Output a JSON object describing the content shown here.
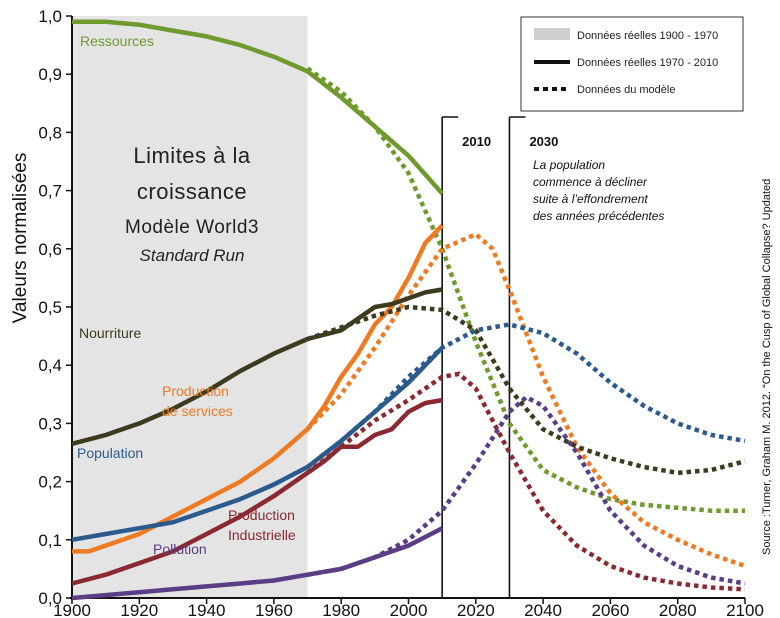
{
  "chart_data": {
    "type": "line",
    "title_lines": [
      "Limites à la",
      "croissance",
      "Modèle World3"
    ],
    "subtitle": "Standard Run",
    "ylabel": "Valeurs normalisées",
    "xlabel": "",
    "xlim": [
      1900,
      2100
    ],
    "ylim": [
      0,
      1
    ],
    "xticks": [
      "1900",
      "1920",
      "1940",
      "1960",
      "1980",
      "2000",
      "2020",
      "2040",
      "2060",
      "2080",
      "2100"
    ],
    "yticks": [
      "0,0",
      "0,1",
      "0,2",
      "0,3",
      "0,4",
      "0,5",
      "0,6",
      "0,7",
      "0,8",
      "0,9",
      "1,0"
    ],
    "shaded_period": [
      1900,
      1970
    ],
    "legend": {
      "placement": "top-right",
      "entries": [
        "Données réelles 1900 - 1970",
        "Données réelles 1970 - 2010",
        "Données du modèle"
      ]
    },
    "vlines": [
      {
        "x": 2010,
        "label": "2010"
      },
      {
        "x": 2030,
        "label": "2030"
      }
    ],
    "annotation_lines": [
      "La population",
      "commence à décliner",
      "suite à l’effondrement",
      "des années précédentes"
    ],
    "source": "Source :Turner, Graham M. 2012. “On the Cusp of Global Collapse? Updated",
    "series": [
      {
        "name": "Ressources",
        "color": "#6e9a2e",
        "label_lines": [
          "Ressources"
        ],
        "actual": [
          [
            1900,
            0.99
          ],
          [
            1910,
            0.99
          ],
          [
            1920,
            0.985
          ],
          [
            1930,
            0.975
          ],
          [
            1940,
            0.965
          ],
          [
            1950,
            0.95
          ],
          [
            1960,
            0.93
          ],
          [
            1970,
            0.905
          ],
          [
            1980,
            0.86
          ],
          [
            1990,
            0.81
          ],
          [
            2000,
            0.76
          ],
          [
            2010,
            0.695
          ]
        ],
        "model": [
          [
            1970,
            0.91
          ],
          [
            1980,
            0.87
          ],
          [
            1990,
            0.81
          ],
          [
            2000,
            0.73
          ],
          [
            2010,
            0.6
          ],
          [
            2020,
            0.44
          ],
          [
            2030,
            0.3
          ],
          [
            2040,
            0.22
          ],
          [
            2050,
            0.19
          ],
          [
            2060,
            0.17
          ],
          [
            2070,
            0.16
          ],
          [
            2080,
            0.155
          ],
          [
            2090,
            0.15
          ],
          [
            2100,
            0.15
          ]
        ]
      },
      {
        "name": "Production de services",
        "color": "#ee7a22",
        "label_lines": [
          "Production",
          "de services"
        ],
        "actual": [
          [
            1900,
            0.08
          ],
          [
            1905,
            0.08
          ],
          [
            1910,
            0.09
          ],
          [
            1920,
            0.11
          ],
          [
            1930,
            0.14
          ],
          [
            1940,
            0.17
          ],
          [
            1950,
            0.2
          ],
          [
            1960,
            0.24
          ],
          [
            1970,
            0.29
          ],
          [
            1975,
            0.33
          ],
          [
            1980,
            0.38
          ],
          [
            1985,
            0.42
          ],
          [
            1990,
            0.47
          ],
          [
            1995,
            0.5
          ],
          [
            2000,
            0.55
          ],
          [
            2005,
            0.61
          ],
          [
            2010,
            0.64
          ]
        ],
        "model": [
          [
            1970,
            0.29
          ],
          [
            1980,
            0.35
          ],
          [
            1990,
            0.43
          ],
          [
            2000,
            0.52
          ],
          [
            2010,
            0.6
          ],
          [
            2020,
            0.625
          ],
          [
            2025,
            0.6
          ],
          [
            2030,
            0.53
          ],
          [
            2040,
            0.38
          ],
          [
            2050,
            0.26
          ],
          [
            2060,
            0.18
          ],
          [
            2070,
            0.13
          ],
          [
            2080,
            0.1
          ],
          [
            2090,
            0.075
          ],
          [
            2100,
            0.055
          ]
        ]
      },
      {
        "name": "Nourriture",
        "color": "#3d3a1e",
        "label_lines": [
          "Nourriture"
        ],
        "actual": [
          [
            1900,
            0.265
          ],
          [
            1910,
            0.28
          ],
          [
            1920,
            0.3
          ],
          [
            1930,
            0.325
          ],
          [
            1940,
            0.355
          ],
          [
            1950,
            0.39
          ],
          [
            1960,
            0.42
          ],
          [
            1970,
            0.445
          ],
          [
            1980,
            0.46
          ],
          [
            1985,
            0.48
          ],
          [
            1990,
            0.5
          ],
          [
            1995,
            0.505
          ],
          [
            2000,
            0.515
          ],
          [
            2005,
            0.525
          ],
          [
            2010,
            0.53
          ]
        ],
        "model": [
          [
            1970,
            0.445
          ],
          [
            1980,
            0.465
          ],
          [
            1990,
            0.485
          ],
          [
            2000,
            0.5
          ],
          [
            2010,
            0.495
          ],
          [
            2020,
            0.46
          ],
          [
            2030,
            0.36
          ],
          [
            2040,
            0.29
          ],
          [
            2050,
            0.26
          ],
          [
            2060,
            0.24
          ],
          [
            2070,
            0.225
          ],
          [
            2080,
            0.215
          ],
          [
            2090,
            0.22
          ],
          [
            2100,
            0.235
          ]
        ]
      },
      {
        "name": "Population",
        "color": "#2a5b8c",
        "label_lines": [
          "Population"
        ],
        "actual": [
          [
            1900,
            0.1
          ],
          [
            1910,
            0.11
          ],
          [
            1920,
            0.12
          ],
          [
            1930,
            0.13
          ],
          [
            1940,
            0.15
          ],
          [
            1950,
            0.17
          ],
          [
            1960,
            0.195
          ],
          [
            1970,
            0.225
          ],
          [
            1980,
            0.27
          ],
          [
            1990,
            0.32
          ],
          [
            2000,
            0.37
          ],
          [
            2010,
            0.43
          ]
        ],
        "model": [
          [
            1970,
            0.225
          ],
          [
            1980,
            0.27
          ],
          [
            1990,
            0.32
          ],
          [
            2000,
            0.38
          ],
          [
            2010,
            0.43
          ],
          [
            2020,
            0.46
          ],
          [
            2030,
            0.47
          ],
          [
            2040,
            0.455
          ],
          [
            2050,
            0.42
          ],
          [
            2060,
            0.37
          ],
          [
            2070,
            0.33
          ],
          [
            2080,
            0.3
          ],
          [
            2090,
            0.28
          ],
          [
            2100,
            0.27
          ]
        ]
      },
      {
        "name": "Production Industrielle",
        "color": "#8a2a30",
        "label_lines": [
          "Production",
          "Industrielle"
        ],
        "actual": [
          [
            1900,
            0.025
          ],
          [
            1910,
            0.04
          ],
          [
            1920,
            0.06
          ],
          [
            1930,
            0.08
          ],
          [
            1940,
            0.11
          ],
          [
            1950,
            0.14
          ],
          [
            1960,
            0.175
          ],
          [
            1970,
            0.215
          ],
          [
            1975,
            0.235
          ],
          [
            1980,
            0.26
          ],
          [
            1985,
            0.26
          ],
          [
            1990,
            0.28
          ],
          [
            1995,
            0.29
          ],
          [
            2000,
            0.32
          ],
          [
            2005,
            0.335
          ],
          [
            2010,
            0.34
          ]
        ],
        "model": [
          [
            1970,
            0.215
          ],
          [
            1980,
            0.26
          ],
          [
            1990,
            0.305
          ],
          [
            2000,
            0.34
          ],
          [
            2010,
            0.38
          ],
          [
            2015,
            0.385
          ],
          [
            2020,
            0.36
          ],
          [
            2030,
            0.25
          ],
          [
            2040,
            0.15
          ],
          [
            2050,
            0.09
          ],
          [
            2060,
            0.055
          ],
          [
            2070,
            0.035
          ],
          [
            2080,
            0.025
          ],
          [
            2090,
            0.018
          ],
          [
            2100,
            0.015
          ]
        ]
      },
      {
        "name": "Pollution",
        "color": "#5b3d86",
        "label_lines": [
          "Pollution"
        ],
        "actual": [
          [
            1900,
            0.0
          ],
          [
            1910,
            0.005
          ],
          [
            1920,
            0.01
          ],
          [
            1930,
            0.015
          ],
          [
            1940,
            0.02
          ],
          [
            1950,
            0.025
          ],
          [
            1960,
            0.03
          ],
          [
            1970,
            0.04
          ],
          [
            1980,
            0.05
          ],
          [
            1990,
            0.07
          ],
          [
            2000,
            0.09
          ],
          [
            2010,
            0.12
          ]
        ],
        "model": [
          [
            1970,
            0.04
          ],
          [
            1980,
            0.05
          ],
          [
            1990,
            0.07
          ],
          [
            2000,
            0.1
          ],
          [
            2010,
            0.15
          ],
          [
            2020,
            0.23
          ],
          [
            2030,
            0.32
          ],
          [
            2035,
            0.345
          ],
          [
            2040,
            0.33
          ],
          [
            2050,
            0.25
          ],
          [
            2060,
            0.15
          ],
          [
            2070,
            0.09
          ],
          [
            2080,
            0.055
          ],
          [
            2090,
            0.035
          ],
          [
            2100,
            0.025
          ]
        ]
      }
    ]
  }
}
